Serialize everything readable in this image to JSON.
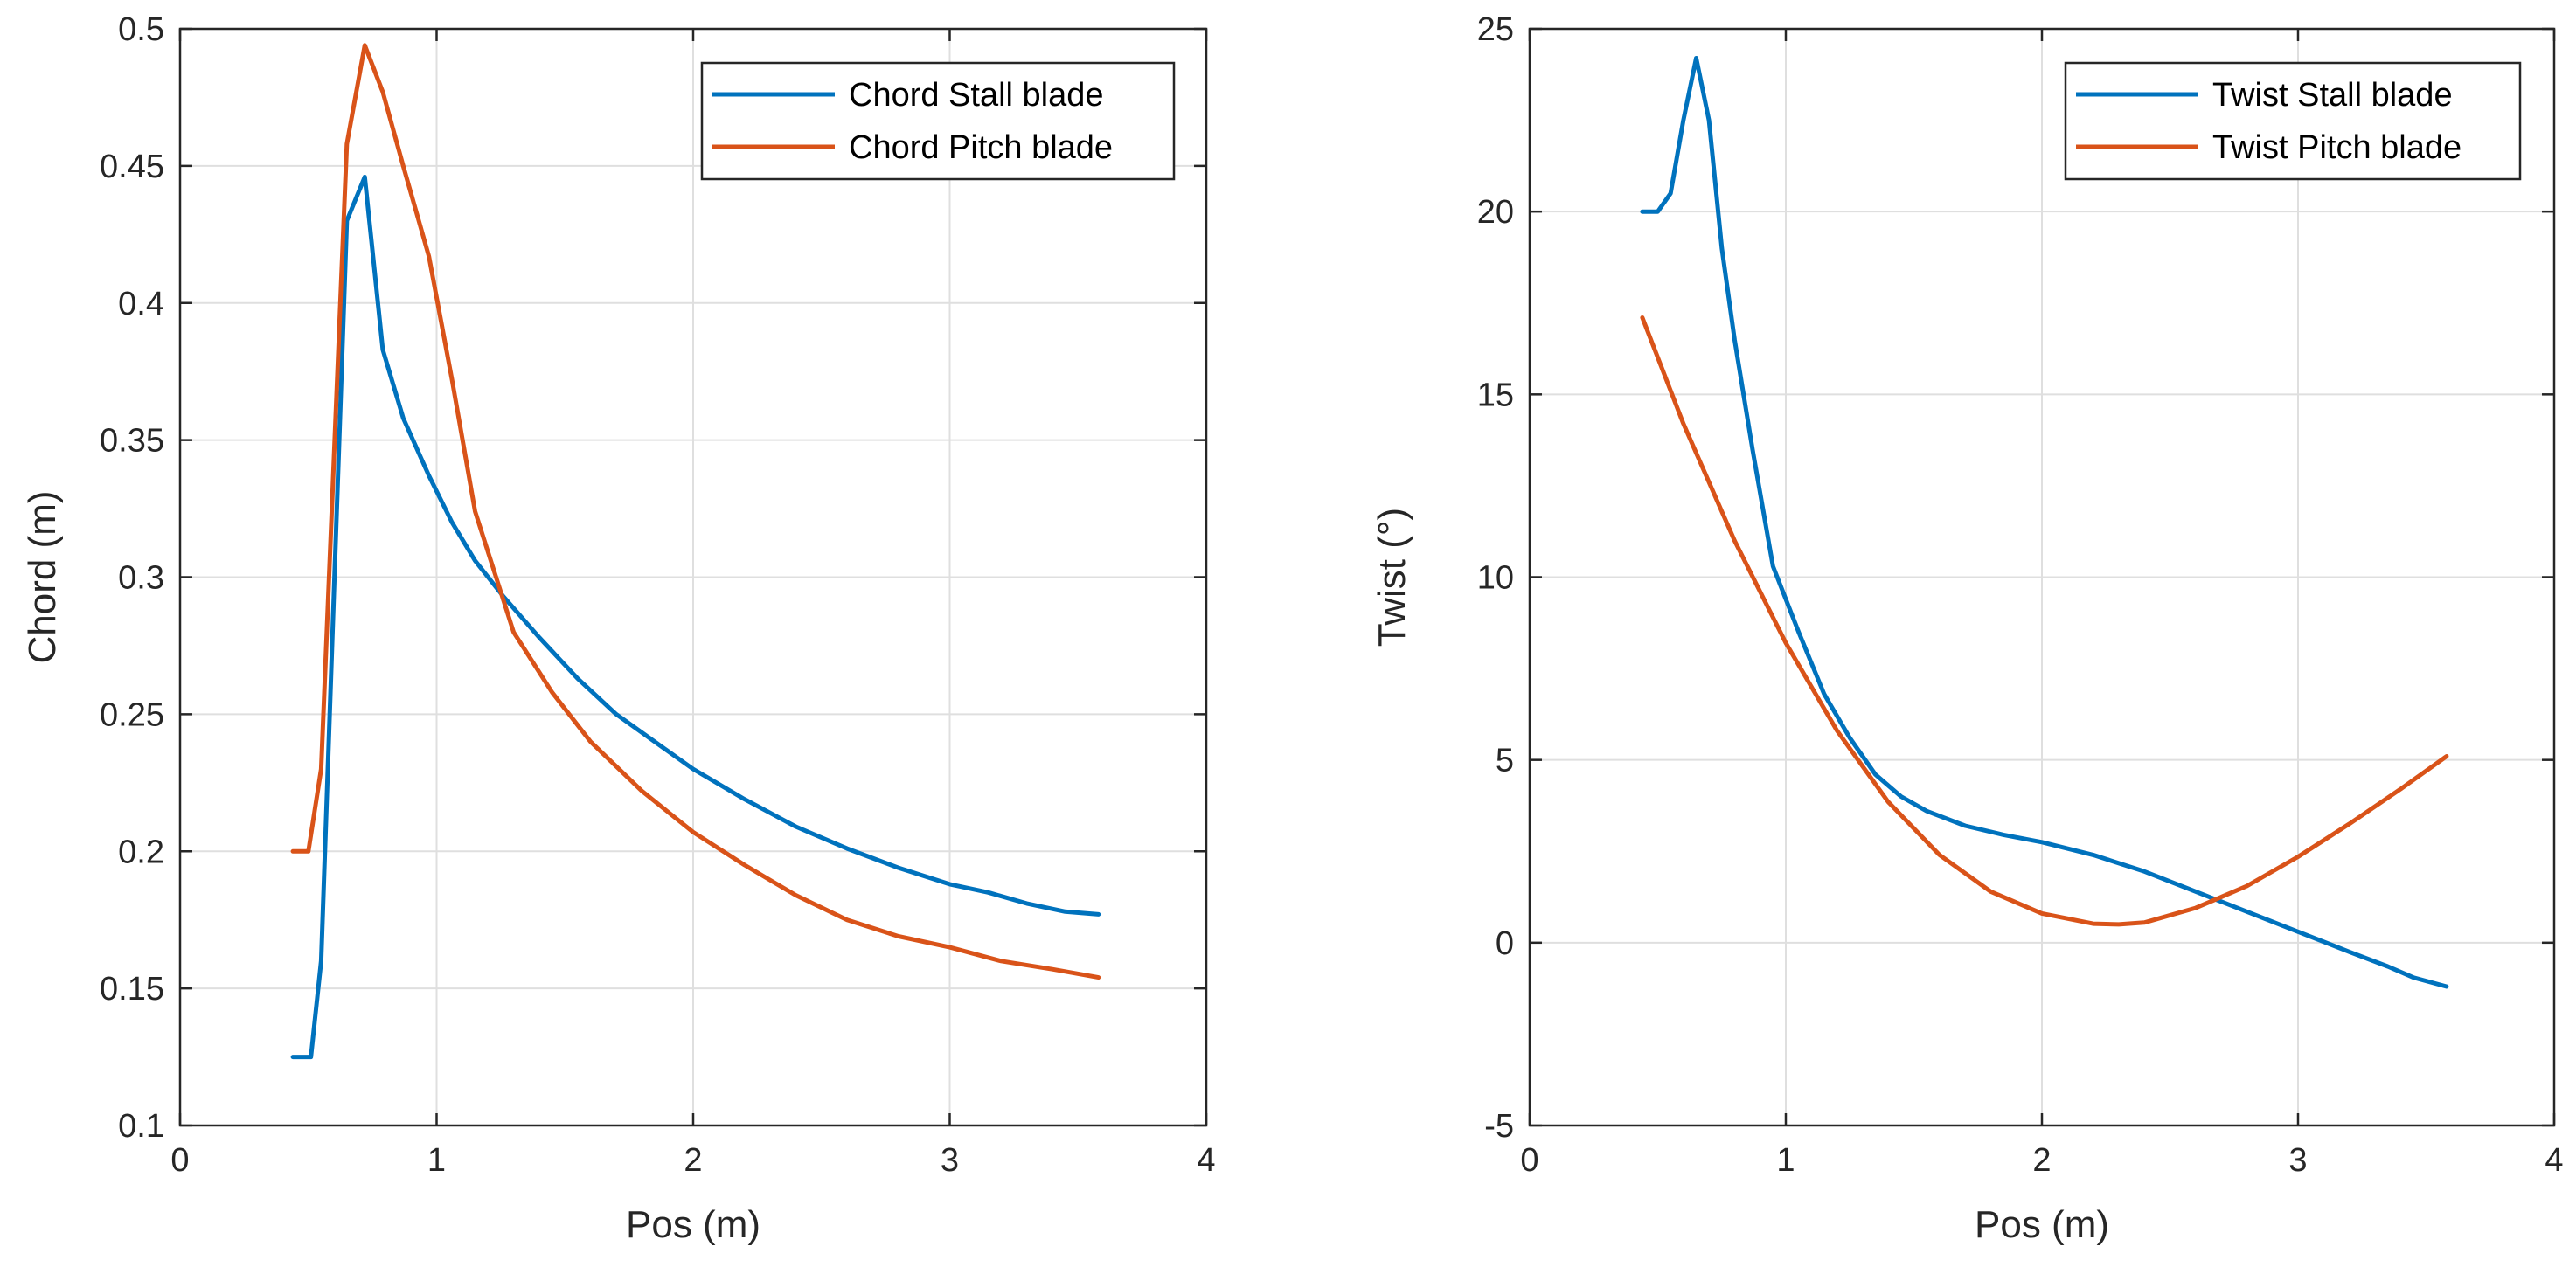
{
  "chart_data": [
    {
      "type": "line",
      "title": "",
      "xlabel": "Pos (m)",
      "ylabel": "Chord (m)",
      "xlim": [
        0,
        4
      ],
      "ylim": [
        0.1,
        0.5
      ],
      "xticks": [
        0,
        1,
        2,
        3,
        4
      ],
      "xtick_labels": [
        "0",
        "1",
        "2",
        "3",
        "4"
      ],
      "yticks": [
        0.1,
        0.15,
        0.2,
        0.25,
        0.3,
        0.35,
        0.4,
        0.45,
        0.5
      ],
      "ytick_labels": [
        "0.1",
        "0.15",
        "0.2",
        "0.25",
        "0.3",
        "0.35",
        "0.4",
        "0.45",
        "0.5"
      ],
      "grid": true,
      "legend_position": "top-right",
      "series": [
        {
          "name": "Chord Stall blade",
          "color": "#0072BD",
          "x": [
            0.44,
            0.51,
            0.55,
            0.65,
            0.72,
            0.79,
            0.87,
            0.97,
            1.06,
            1.15,
            1.26,
            1.4,
            1.55,
            1.7,
            1.85,
            2.0,
            2.2,
            2.4,
            2.6,
            2.8,
            3.0,
            3.15,
            3.3,
            3.45,
            3.58
          ],
          "y": [
            0.125,
            0.125,
            0.16,
            0.43,
            0.446,
            0.383,
            0.358,
            0.337,
            0.32,
            0.306,
            0.293,
            0.278,
            0.263,
            0.25,
            0.24,
            0.23,
            0.219,
            0.209,
            0.201,
            0.194,
            0.188,
            0.185,
            0.181,
            0.178,
            0.177
          ]
        },
        {
          "name": "Chord Pitch blade",
          "color": "#D95319",
          "x": [
            0.44,
            0.5,
            0.55,
            0.65,
            0.72,
            0.79,
            0.87,
            0.97,
            1.06,
            1.15,
            1.3,
            1.45,
            1.6,
            1.8,
            2.0,
            2.2,
            2.4,
            2.6,
            2.8,
            3.0,
            3.2,
            3.4,
            3.58
          ],
          "y": [
            0.2,
            0.2,
            0.23,
            0.458,
            0.494,
            0.477,
            0.45,
            0.417,
            0.372,
            0.324,
            0.28,
            0.258,
            0.24,
            0.222,
            0.207,
            0.195,
            0.184,
            0.175,
            0.169,
            0.165,
            0.16,
            0.157,
            0.154
          ]
        }
      ]
    },
    {
      "type": "line",
      "title": "",
      "xlabel": "Pos (m)",
      "ylabel": "Twist (°)",
      "xlim": [
        0,
        4
      ],
      "ylim": [
        -5,
        25
      ],
      "xticks": [
        0,
        1,
        2,
        3,
        4
      ],
      "xtick_labels": [
        "0",
        "1",
        "2",
        "3",
        "4"
      ],
      "yticks": [
        -5,
        0,
        5,
        10,
        15,
        20,
        25
      ],
      "ytick_labels": [
        "-5",
        "0",
        "5",
        "10",
        "15",
        "20",
        "25"
      ],
      "grid": true,
      "legend_position": "top-right",
      "series": [
        {
          "name": "Twist Stall blade",
          "color": "#0072BD",
          "x": [
            0.44,
            0.5,
            0.55,
            0.6,
            0.65,
            0.7,
            0.75,
            0.8,
            0.87,
            0.95,
            1.05,
            1.15,
            1.25,
            1.35,
            1.45,
            1.55,
            1.7,
            1.85,
            2.0,
            2.2,
            2.4,
            2.6,
            2.8,
            3.0,
            3.2,
            3.35,
            3.45,
            3.58
          ],
          "y": [
            20.0,
            20.0,
            20.5,
            22.5,
            24.2,
            22.5,
            19.0,
            16.5,
            13.5,
            10.3,
            8.5,
            6.8,
            5.6,
            4.6,
            4.0,
            3.6,
            3.2,
            2.95,
            2.75,
            2.4,
            1.95,
            1.4,
            0.85,
            0.3,
            -0.25,
            -0.65,
            -0.95,
            -1.2
          ]
        },
        {
          "name": "Twist Pitch blade",
          "color": "#D95319",
          "x": [
            0.44,
            0.6,
            0.8,
            1.0,
            1.2,
            1.4,
            1.6,
            1.8,
            2.0,
            2.2,
            2.3,
            2.4,
            2.6,
            2.8,
            3.0,
            3.2,
            3.4,
            3.58
          ],
          "y": [
            17.1,
            14.2,
            11.0,
            8.2,
            5.8,
            3.85,
            2.4,
            1.4,
            0.8,
            0.52,
            0.5,
            0.55,
            0.95,
            1.55,
            2.35,
            3.25,
            4.2,
            5.1
          ]
        }
      ]
    }
  ]
}
